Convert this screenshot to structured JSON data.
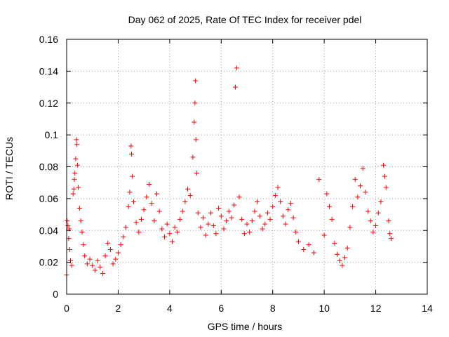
{
  "chart_data": {
    "type": "scatter",
    "title": "Day 062 of 2025, Rate Of TEC Index for receiver pdel",
    "xlabel": "GPS time / hours",
    "ylabel": "ROTI / TECUs",
    "xlim": [
      0,
      14
    ],
    "ylim": [
      0,
      0.16
    ],
    "xticks": [
      0,
      2,
      4,
      6,
      8,
      10,
      12,
      14
    ],
    "xtick_labels": [
      "0",
      "2",
      "4",
      "6",
      "8",
      "10",
      "12",
      "14"
    ],
    "yticks": [
      0,
      0.02,
      0.04,
      0.06,
      0.08,
      0.1,
      0.12,
      0.14,
      0.16
    ],
    "ytick_labels": [
      "0",
      "0.02",
      "0.04",
      "0.06",
      "0.08",
      "0.1",
      "0.12",
      "0.14",
      "0.16"
    ],
    "grid": true,
    "marker": "+",
    "color": "#ff0000",
    "series": [
      {
        "name": "ROTI",
        "points": [
          [
            0.0,
            0.012
          ],
          [
            0.02,
            0.046
          ],
          [
            0.05,
            0.043
          ],
          [
            0.08,
            0.035
          ],
          [
            0.1,
            0.041
          ],
          [
            0.12,
            0.028
          ],
          [
            0.15,
            0.021
          ],
          [
            0.2,
            0.018
          ],
          [
            0.25,
            0.063
          ],
          [
            0.28,
            0.066
          ],
          [
            0.3,
            0.072
          ],
          [
            0.32,
            0.076
          ],
          [
            0.35,
            0.085
          ],
          [
            0.38,
            0.097
          ],
          [
            0.4,
            0.094
          ],
          [
            0.42,
            0.081
          ],
          [
            0.45,
            0.067
          ],
          [
            0.5,
            0.054
          ],
          [
            0.55,
            0.046
          ],
          [
            0.6,
            0.039
          ],
          [
            0.65,
            0.031
          ],
          [
            0.7,
            0.024
          ],
          [
            0.8,
            0.019
          ],
          [
            0.9,
            0.022
          ],
          [
            1.0,
            0.018
          ],
          [
            1.1,
            0.015
          ],
          [
            1.2,
            0.021
          ],
          [
            1.3,
            0.017
          ],
          [
            1.4,
            0.013
          ],
          [
            1.5,
            0.024
          ],
          [
            1.6,
            0.032
          ],
          [
            1.7,
            0.028
          ],
          [
            1.8,
            0.019
          ],
          [
            1.9,
            0.022
          ],
          [
            2.0,
            0.026
          ],
          [
            2.1,
            0.031
          ],
          [
            2.2,
            0.036
          ],
          [
            2.3,
            0.042
          ],
          [
            2.4,
            0.055
          ],
          [
            2.45,
            0.064
          ],
          [
            2.5,
            0.093
          ],
          [
            2.52,
            0.088
          ],
          [
            2.55,
            0.074
          ],
          [
            2.6,
            0.058
          ],
          [
            2.7,
            0.045
          ],
          [
            2.8,
            0.039
          ],
          [
            2.9,
            0.047
          ],
          [
            3.0,
            0.053
          ],
          [
            3.1,
            0.061
          ],
          [
            3.2,
            0.069
          ],
          [
            3.3,
            0.057
          ],
          [
            3.4,
            0.046
          ],
          [
            3.5,
            0.063
          ],
          [
            3.6,
            0.052
          ],
          [
            3.7,
            0.041
          ],
          [
            3.8,
            0.036
          ],
          [
            3.9,
            0.044
          ],
          [
            4.0,
            0.038
          ],
          [
            4.1,
            0.033
          ],
          [
            4.2,
            0.042
          ],
          [
            4.3,
            0.039
          ],
          [
            4.4,
            0.047
          ],
          [
            4.5,
            0.052
          ],
          [
            4.6,
            0.058
          ],
          [
            4.7,
            0.066
          ],
          [
            4.8,
            0.062
          ],
          [
            4.9,
            0.086
          ],
          [
            4.95,
            0.108
          ],
          [
            4.98,
            0.12
          ],
          [
            5.0,
            0.134
          ],
          [
            5.02,
            0.097
          ],
          [
            5.05,
            0.076
          ],
          [
            5.1,
            0.051
          ],
          [
            5.2,
            0.042
          ],
          [
            5.3,
            0.048
          ],
          [
            5.4,
            0.037
          ],
          [
            5.5,
            0.044
          ],
          [
            5.6,
            0.051
          ],
          [
            5.7,
            0.043
          ],
          [
            5.8,
            0.038
          ],
          [
            5.9,
            0.054
          ],
          [
            6.0,
            0.049
          ],
          [
            6.1,
            0.041
          ],
          [
            6.2,
            0.046
          ],
          [
            6.3,
            0.052
          ],
          [
            6.4,
            0.048
          ],
          [
            6.5,
            0.056
          ],
          [
            6.55,
            0.13
          ],
          [
            6.6,
            0.142
          ],
          [
            6.7,
            0.061
          ],
          [
            6.8,
            0.047
          ],
          [
            6.9,
            0.038
          ],
          [
            7.0,
            0.044
          ],
          [
            7.1,
            0.039
          ],
          [
            7.2,
            0.046
          ],
          [
            7.3,
            0.052
          ],
          [
            7.4,
            0.058
          ],
          [
            7.5,
            0.049
          ],
          [
            7.6,
            0.041
          ],
          [
            7.7,
            0.044
          ],
          [
            7.8,
            0.051
          ],
          [
            7.9,
            0.047
          ],
          [
            8.0,
            0.055
          ],
          [
            8.1,
            0.062
          ],
          [
            8.2,
            0.067
          ],
          [
            8.3,
            0.058
          ],
          [
            8.4,
            0.049
          ],
          [
            8.5,
            0.044
          ],
          [
            8.6,
            0.053
          ],
          [
            8.7,
            0.057
          ],
          [
            8.8,
            0.048
          ],
          [
            8.9,
            0.039
          ],
          [
            9.0,
            0.033
          ],
          [
            9.2,
            0.028
          ],
          [
            9.4,
            0.031
          ],
          [
            9.6,
            0.026
          ],
          [
            9.8,
            0.072
          ],
          [
            10.0,
            0.037
          ],
          [
            10.1,
            0.063
          ],
          [
            10.2,
            0.055
          ],
          [
            10.3,
            0.047
          ],
          [
            10.4,
            0.032
          ],
          [
            10.5,
            0.025
          ],
          [
            10.6,
            0.021
          ],
          [
            10.7,
            0.018
          ],
          [
            10.8,
            0.023
          ],
          [
            10.9,
            0.029
          ],
          [
            11.0,
            0.042
          ],
          [
            11.1,
            0.055
          ],
          [
            11.2,
            0.072
          ],
          [
            11.3,
            0.061
          ],
          [
            11.4,
            0.068
          ],
          [
            11.5,
            0.079
          ],
          [
            11.6,
            0.064
          ],
          [
            11.7,
            0.052
          ],
          [
            11.8,
            0.046
          ],
          [
            11.9,
            0.039
          ],
          [
            12.0,
            0.043
          ],
          [
            12.1,
            0.051
          ],
          [
            12.2,
            0.058
          ],
          [
            12.3,
            0.081
          ],
          [
            12.35,
            0.074
          ],
          [
            12.4,
            0.067
          ],
          [
            12.5,
            0.046
          ],
          [
            12.55,
            0.038
          ],
          [
            12.6,
            0.035
          ]
        ]
      }
    ]
  }
}
